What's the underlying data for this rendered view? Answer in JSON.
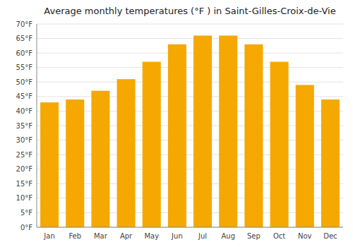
{
  "chart_data": {
    "type": "bar",
    "title": "Average monthly temperatures (°F ) in Saint-Gilles-Croix-de-Vie",
    "categories": [
      "Jan",
      "Feb",
      "Mar",
      "Apr",
      "May",
      "Jun",
      "Jul",
      "Aug",
      "Sep",
      "Oct",
      "Nov",
      "Dec"
    ],
    "values": [
      43,
      44,
      47,
      51,
      57,
      63,
      66,
      66,
      63,
      57,
      49,
      44
    ],
    "color": "#F5A800",
    "ylim": [
      0,
      70
    ],
    "yticks": [
      {
        "value": 0,
        "label": "0°F"
      },
      {
        "value": 5,
        "label": "5°F"
      },
      {
        "value": 10,
        "label": "10°F"
      },
      {
        "value": 15,
        "label": "15°F"
      },
      {
        "value": 20,
        "label": "20°F"
      },
      {
        "value": 25,
        "label": "25°F"
      },
      {
        "value": 30,
        "label": "30°F"
      },
      {
        "value": 35,
        "label": "35°F"
      },
      {
        "value": 40,
        "label": "40°F"
      },
      {
        "value": 45,
        "label": "45°F"
      },
      {
        "value": 50,
        "label": "50°F"
      },
      {
        "value": 55,
        "label": "55°F"
      },
      {
        "value": 60,
        "label": "60°F"
      },
      {
        "value": 65,
        "label": "65°F"
      },
      {
        "value": 70,
        "label": "70°F"
      }
    ],
    "grid": true
  }
}
